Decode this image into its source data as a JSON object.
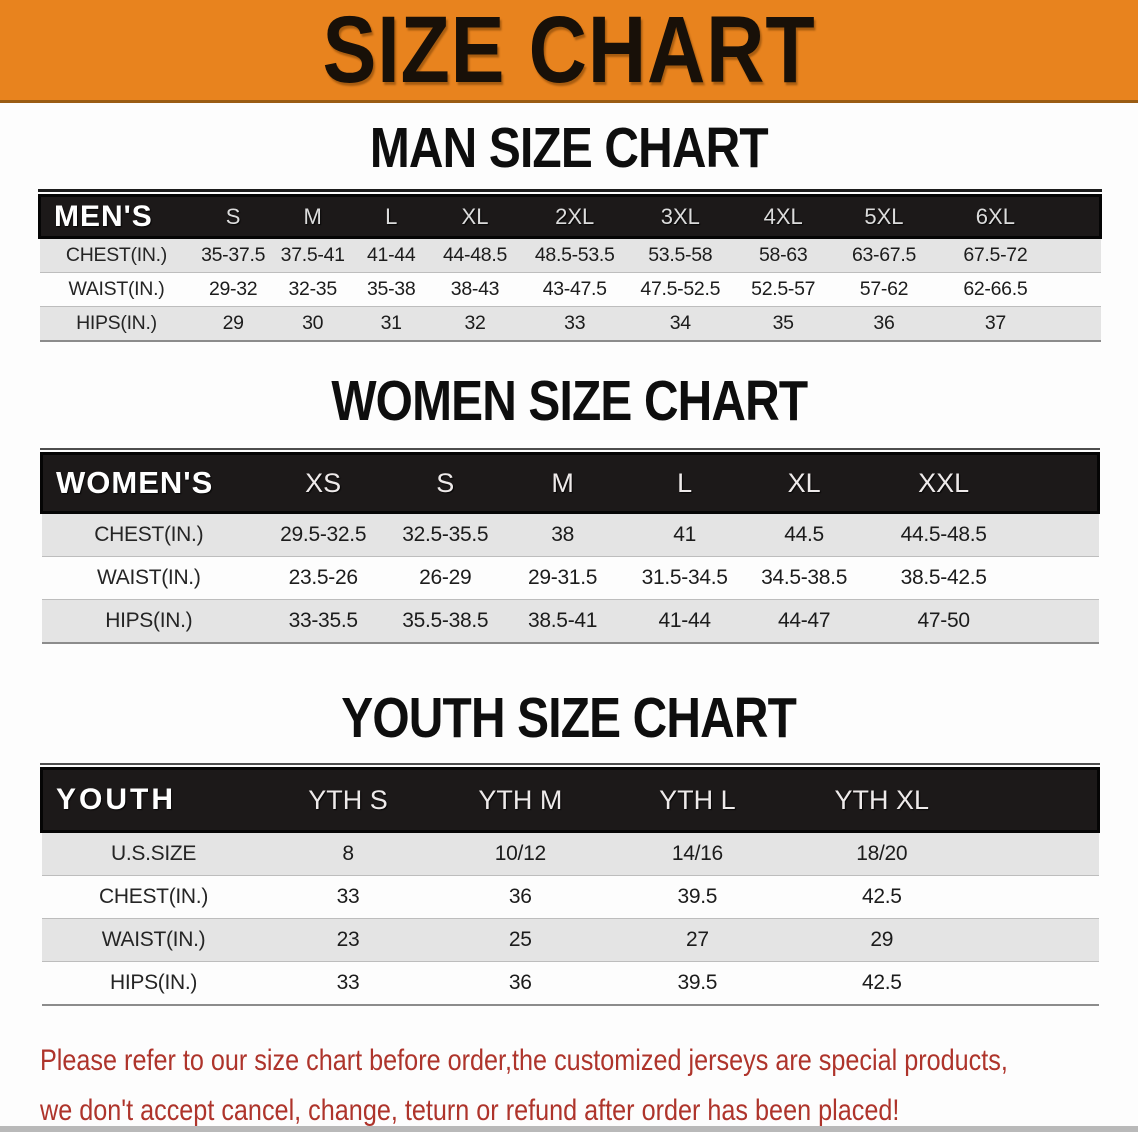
{
  "banner": {
    "title": "SIZE CHART",
    "bg_color": "#E8831E",
    "text_color": "#181008"
  },
  "man_section": {
    "heading": "MAN SIZE CHART",
    "table": {
      "columns_pct": [
        14.5,
        7.5,
        7.5,
        7.3,
        8.5,
        10.3,
        9.6,
        9.8,
        9.2,
        11.8,
        4.0
      ],
      "header": [
        "MEN'S",
        "S",
        "M",
        "L",
        "XL",
        "2XL",
        "3XL",
        "4XL",
        "5XL",
        "6XL"
      ],
      "rows": [
        [
          "CHEST(IN.)",
          "35-37.5",
          "37.5-41",
          "41-44",
          "44-48.5",
          "48.5-53.5",
          "53.5-58",
          "58-63",
          "63-67.5",
          "67.5-72"
        ],
        [
          "WAIST(IN.)",
          "29-32",
          "32-35",
          "35-38",
          "38-43",
          "43-47.5",
          "47.5-52.5",
          "52.5-57",
          "57-62",
          "62-66.5"
        ],
        [
          "HIPS(IN.)",
          "29",
          "30",
          "31",
          "32",
          "33",
          "34",
          "35",
          "36",
          "37"
        ]
      ]
    }
  },
  "women_section": {
    "heading": "WOMEN SIZE CHART",
    "table": {
      "columns_pct": [
        20.3,
        12.7,
        10.4,
        11.8,
        11.3,
        11.3,
        15.1,
        7.1
      ],
      "header": [
        "WOMEN'S",
        "XS",
        "S",
        "M",
        "L",
        "XL",
        "XXL"
      ],
      "rows": [
        [
          "CHEST(IN.)",
          "29.5-32.5",
          "32.5-35.5",
          "38",
          "41",
          "44.5",
          "44.5-48.5"
        ],
        [
          "WAIST(IN.)",
          "23.5-26",
          "26-29",
          "29-31.5",
          "31.5-34.5",
          "34.5-38.5",
          "38.5-42.5"
        ],
        [
          "HIPS(IN.)",
          "33-35.5",
          "35.5-38.5",
          "38.5-41",
          "41-44",
          "44-47",
          "47-50"
        ]
      ]
    }
  },
  "youth_section": {
    "heading": "YOUTH SIZE CHART",
    "table": {
      "columns_pct": [
        21.2,
        15.6,
        17.0,
        16.5,
        18.4,
        11.3
      ],
      "header": [
        "YOUTH",
        "YTH S",
        "YTH M",
        "YTH L",
        "YTH XL"
      ],
      "rows": [
        [
          "U.S.SIZE",
          "8",
          "10/12",
          "14/16",
          "18/20"
        ],
        [
          "CHEST(IN.)",
          "33",
          "36",
          "39.5",
          "42.5"
        ],
        [
          "WAIST(IN.)",
          "23",
          "25",
          "27",
          "29"
        ],
        [
          "HIPS(IN.)",
          "33",
          "36",
          "39.5",
          "42.5"
        ]
      ]
    }
  },
  "disclaimer": {
    "line1": "Please refer to our size chart before order,the customized jerseys are special products,",
    "line2": "we don't accept cancel, change, teturn or refund after order has been placed!",
    "color": "#AE342B"
  }
}
